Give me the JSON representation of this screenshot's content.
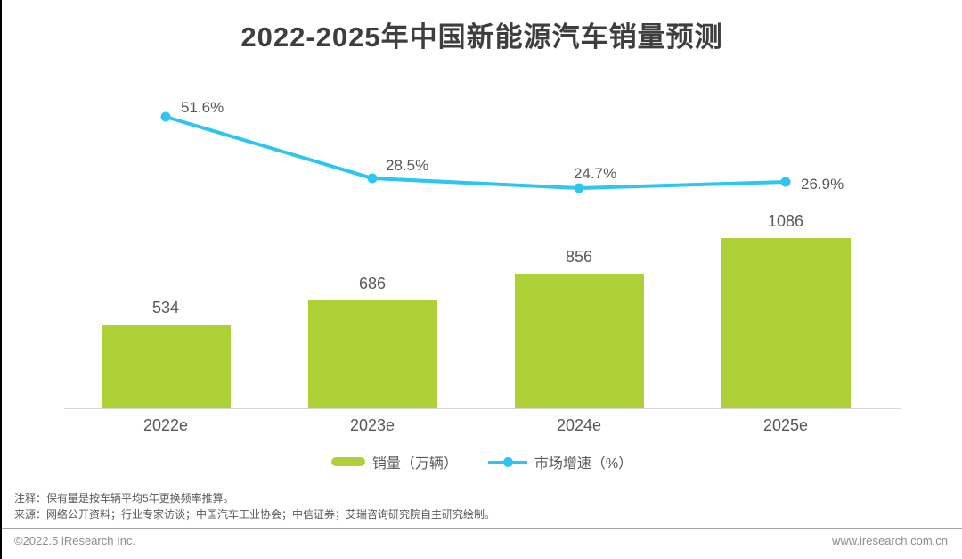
{
  "title": "2022-2025年中国新能源汽车销量预测",
  "chart_data": {
    "type": "bar+line",
    "title": "2022-2025年中国新能源汽车销量预测",
    "categories": [
      "2022e",
      "2023e",
      "2024e",
      "2025e"
    ],
    "series": [
      {
        "name": "销量（万辆）",
        "type": "bar",
        "values": [
          534,
          686,
          856,
          1086
        ],
        "data_labels": [
          "534",
          "686",
          "856",
          "1086"
        ],
        "color": "#afd138"
      },
      {
        "name": "市场增速（%）",
        "type": "line",
        "values": [
          51.6,
          28.5,
          24.7,
          26.9
        ],
        "data_labels": [
          "51.6%",
          "28.5%",
          "24.7%",
          "26.9%"
        ],
        "color": "#2ec5f1"
      }
    ],
    "xlabel": "",
    "ylabel": "",
    "bar_axis_range": [
      0,
      1200
    ],
    "line_axis_range": [
      0,
      60
    ],
    "grid": false,
    "legend_position": "bottom",
    "axis_line_color": "#d9d9d9",
    "label_color": "#595959"
  },
  "legend": {
    "sales_label": "销量（万辆）",
    "growth_label": "市场增速（%）"
  },
  "footnotes": {
    "note": "注释：保有量是按车辆平均5年更换频率推算。",
    "source": "来源：网络公开资料；行业专家访谈；中国汽车工业协会；中信证券；艾瑞咨询研究院自主研究绘制。"
  },
  "footer": {
    "copyright": "©2022.5 iResearch Inc.",
    "website": "www.iresearch.com.cn"
  }
}
